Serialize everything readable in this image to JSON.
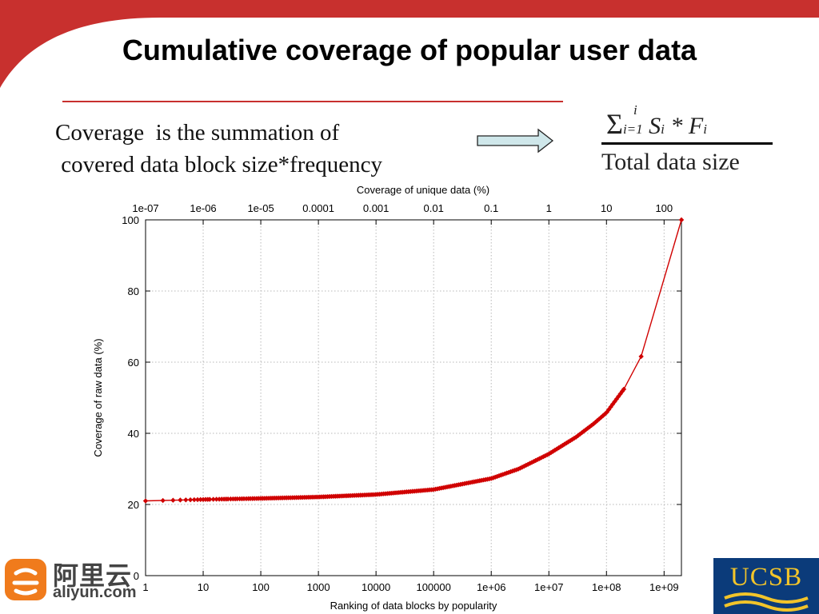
{
  "slide": {
    "title": "Cumulative coverage of popular user data",
    "text_line1": "Coverage  is the summation of",
    "text_line2": " covered data block size*frequency",
    "formula": {
      "sum": "Σ",
      "sup": "i",
      "sub": "i=1",
      "numerator_terms": "S",
      "numerator_sub": "i",
      "times": " * F",
      "denominator": "Total data size"
    },
    "colors": {
      "accent_red": "#c8302e",
      "series_red": "#d00000",
      "arrow_fill": "#cfe7ea"
    },
    "logos": {
      "aliyun_cn": "阿里云",
      "aliyun_en": "aliyun.com",
      "ucsb": "UCSB"
    }
  },
  "chart_data": {
    "type": "line",
    "title": "",
    "xlabel": "Ranking of data blocks by popularity",
    "x2label": "Coverage of unique data (%)",
    "ylabel": "Coverage of raw data (%)",
    "x_scale": "log",
    "xlim": [
      1,
      2000000000
    ],
    "ylim": [
      0,
      100
    ],
    "x_ticks": [
      "1",
      "10",
      "100",
      "1000",
      "10000",
      "100000",
      "1e+06",
      "1e+07",
      "1e+08",
      "1e+09"
    ],
    "x2_ticks": [
      "1e-07",
      "1e-06",
      "1e-05",
      "0.0001",
      "0.001",
      "0.01",
      "0.1",
      "1",
      "10",
      "100"
    ],
    "y_ticks": [
      "0",
      "20",
      "40",
      "60",
      "80",
      "100"
    ],
    "grid": true,
    "series": [
      {
        "points": [
          [
            1,
            21.0
          ],
          [
            10,
            21.4
          ],
          [
            100,
            21.7
          ],
          [
            1000,
            22.1
          ],
          [
            10000,
            22.8
          ],
          [
            100000,
            24.2
          ],
          [
            1000000,
            27.3
          ],
          [
            3000000,
            30.0
          ],
          [
            10000000,
            34.2
          ],
          [
            30000000,
            39.0
          ],
          [
            60000000,
            42.7
          ],
          [
            100000000,
            45.8
          ],
          [
            200000000,
            52.4
          ],
          [
            400000000,
            61.6
          ],
          [
            2000000000,
            100
          ]
        ]
      }
    ]
  }
}
